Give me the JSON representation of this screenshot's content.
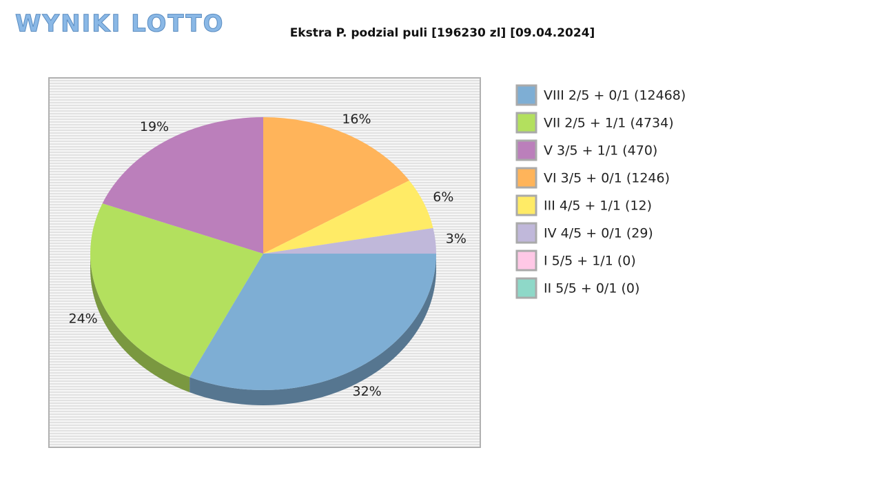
{
  "logo": "WYNIKI LOTTO",
  "chart_data": {
    "type": "pie",
    "title": "Ekstra P. podzial puli [196230 zl] [09.04.2024]",
    "series": [
      {
        "name": "VIII 2/5 + 0/1 (12468)",
        "color": "#7eaed4",
        "values": [
          32
        ],
        "value_labels": [
          "32%"
        ]
      },
      {
        "name": "VII 2/5 + 1/1 (4734)",
        "color": "#b3e05e",
        "values": [
          24
        ],
        "value_labels": [
          "24%"
        ]
      },
      {
        "name": "V 3/5 + 1/1 (470)",
        "color": "#bb7fbb",
        "values": [
          19
        ],
        "value_labels": [
          "19%"
        ]
      },
      {
        "name": "VI 3/5 + 0/1 (1246)",
        "color": "#ffb45a",
        "values": [
          16
        ],
        "value_labels": [
          "16%"
        ]
      },
      {
        "name": "III 4/5 + 1/1 (12)",
        "color": "#ffeb66",
        "values": [
          6
        ],
        "value_labels": [
          "6%"
        ]
      },
      {
        "name": "IV 4/5 + 0/1 (29)",
        "color": "#c0b8da",
        "values": [
          3
        ],
        "value_labels": [
          "3%"
        ]
      },
      {
        "name": "I 5/5 + 1/1 (0)",
        "color": "#ffc8e6",
        "values": [
          0
        ],
        "value_labels": [
          null
        ]
      },
      {
        "name": "II 5/5 + 0/1 (0)",
        "color": "#8ed8c8",
        "values": [
          0
        ],
        "value_labels": [
          null
        ]
      }
    ]
  }
}
